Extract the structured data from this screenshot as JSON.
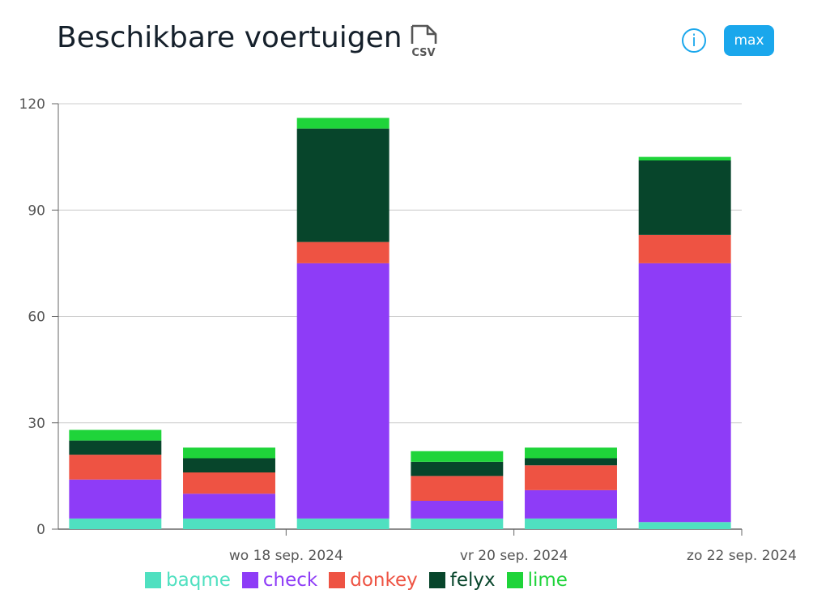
{
  "header": {
    "title": "Beschikbare voertuigen",
    "csv_label": "CSV",
    "max_label": "max",
    "info_label": "i"
  },
  "chart_data": {
    "type": "bar",
    "stacked": true,
    "categories": [
      "",
      "wo 18 sep. 2024",
      "",
      "vr 20 sep. 2024",
      "",
      "zo 22 sep. 2024"
    ],
    "series": [
      {
        "name": "baqme",
        "color": "#4fe0c0",
        "values": [
          3,
          3,
          3,
          3,
          3,
          2
        ]
      },
      {
        "name": "check",
        "color": "#8e3cf7",
        "values": [
          11,
          7,
          72,
          5,
          8,
          73
        ]
      },
      {
        "name": "donkey",
        "color": "#ee5343",
        "values": [
          7,
          6,
          6,
          7,
          7,
          8
        ]
      },
      {
        "name": "felyx",
        "color": "#07452b",
        "values": [
          4,
          4,
          32,
          4,
          2,
          21
        ]
      },
      {
        "name": "lime",
        "color": "#1fd43a",
        "values": [
          3,
          3,
          3,
          3,
          3,
          1
        ]
      }
    ],
    "yticks": [
      0,
      30,
      60,
      90,
      120
    ],
    "ylim": [
      0,
      120
    ],
    "grid": true,
    "legend_position": "bottom"
  }
}
